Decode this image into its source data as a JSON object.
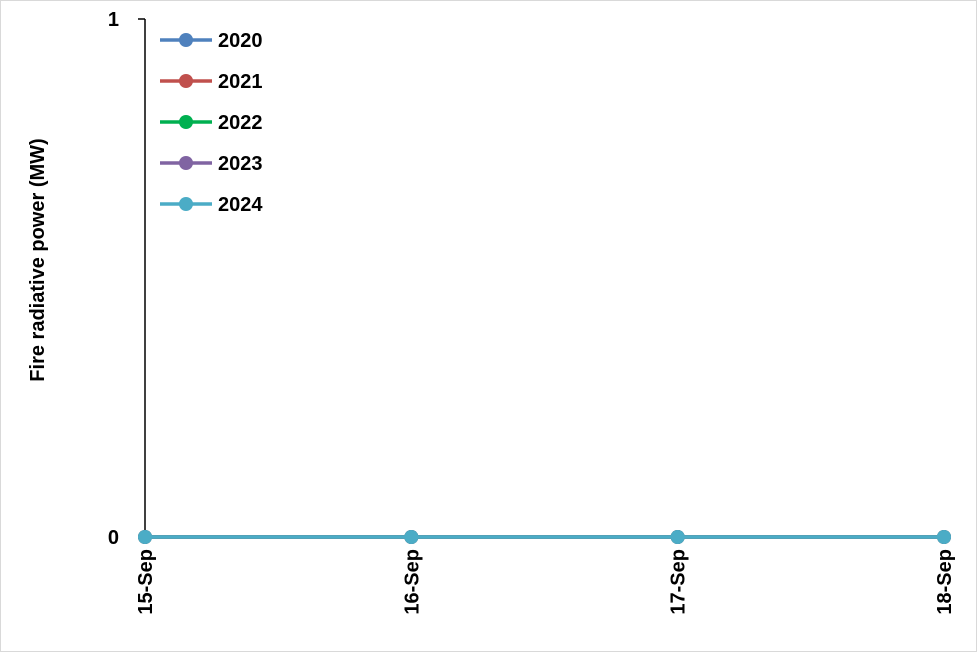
{
  "chart_data": {
    "type": "line",
    "x": [
      "15-Sep",
      "16-Sep",
      "17-Sep",
      "18-Sep"
    ],
    "ylabel": "Fire radiative power (MW)",
    "xlabel": "",
    "ylim": [
      0,
      1
    ],
    "yticks": [
      "0",
      "1"
    ],
    "grid": false,
    "legend_position": "top-left",
    "series": [
      {
        "name": "2020",
        "color": "#4f81bd",
        "values": [
          0,
          0,
          0,
          0
        ]
      },
      {
        "name": "2021",
        "color": "#c0504d",
        "values": [
          0,
          0,
          0,
          0
        ]
      },
      {
        "name": "2022",
        "color": "#00b050",
        "values": [
          0,
          0,
          0,
          0
        ]
      },
      {
        "name": "2023",
        "color": "#8064a2",
        "values": [
          0,
          0,
          0,
          0
        ]
      },
      {
        "name": "2024",
        "color": "#4bacc6",
        "values": [
          0,
          0,
          0,
          0
        ]
      }
    ]
  }
}
